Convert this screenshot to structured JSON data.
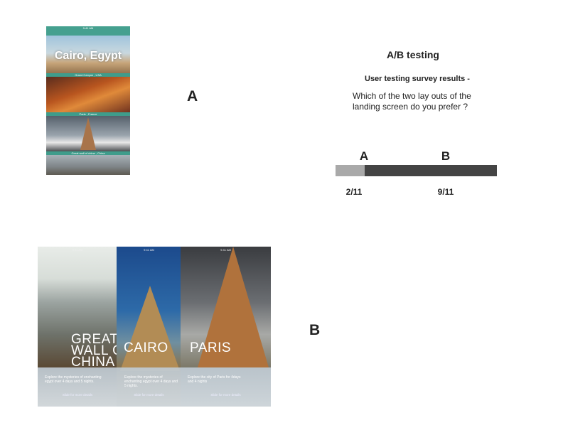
{
  "layout_a": {
    "label": "A",
    "status": "9:41 AM",
    "header": "Cairo, Egypt",
    "captions": [
      "Grand Canyon , USA",
      "Paris , France",
      "Great wall of china , China"
    ]
  },
  "layout_b": {
    "label": "B",
    "status": "9:41 AM",
    "screens": [
      {
        "title": "GREAT WALL OF CHINA",
        "description": "Explore the mysteries of enchanting egypt over 4 days and 5 nights.",
        "hint": "Slide for more details"
      },
      {
        "title": "CAIRO",
        "description": "Explore the mysteries of enchanting egypt over 4 days and 5 nights.",
        "hint": "Slide for more details"
      },
      {
        "title": "PARIS",
        "description": "Explore the city of Paris for 4days and 4 nights",
        "hint": "Slide for more details"
      }
    ]
  },
  "survey": {
    "title": "A/B testing",
    "subtitle": "User testing survey results -",
    "question": "Which of the two lay outs of the landing screen do you prefer ?",
    "results": [
      {
        "option": "A",
        "value": 2,
        "label": "2/11",
        "color": "#a9a9a9"
      },
      {
        "option": "B",
        "value": 9,
        "label": "9/11",
        "color": "#444444"
      }
    ]
  }
}
